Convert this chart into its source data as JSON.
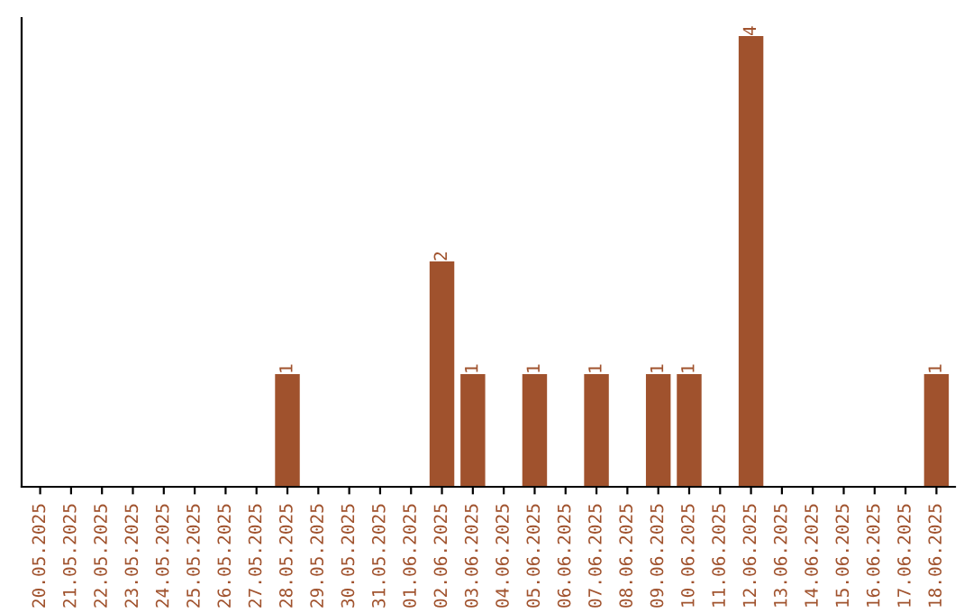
{
  "chart_data": {
    "type": "bar",
    "color": "#a0522d",
    "categories": [
      "20.05.2025",
      "21.05.2025",
      "22.05.2025",
      "23.05.2025",
      "24.05.2025",
      "25.05.2025",
      "26.05.2025",
      "27.05.2025",
      "28.05.2025",
      "29.05.2025",
      "30.05.2025",
      "31.05.2025",
      "01.06.2025",
      "02.06.2025",
      "03.06.2025",
      "04.06.2025",
      "05.06.2025",
      "06.06.2025",
      "07.06.2025",
      "08.06.2025",
      "09.06.2025",
      "10.06.2025",
      "11.06.2025",
      "12.06.2025",
      "13.06.2025",
      "14.06.2025",
      "15.06.2025",
      "16.06.2025",
      "17.06.2025",
      "18.06.2025"
    ],
    "values": [
      0,
      0,
      0,
      0,
      0,
      0,
      0,
      0,
      1,
      0,
      0,
      0,
      0,
      2,
      1,
      0,
      1,
      0,
      1,
      0,
      1,
      1,
      0,
      4,
      0,
      0,
      0,
      0,
      0,
      1
    ],
    "value_labels": [
      null,
      null,
      null,
      null,
      null,
      null,
      null,
      null,
      "1",
      null,
      null,
      null,
      null,
      "2",
      "1",
      null,
      "1",
      null,
      "1",
      null,
      "1",
      "1",
      null,
      "4",
      null,
      null,
      null,
      null,
      null,
      "1"
    ],
    "tick_labels": "x",
    "grid": false
  }
}
